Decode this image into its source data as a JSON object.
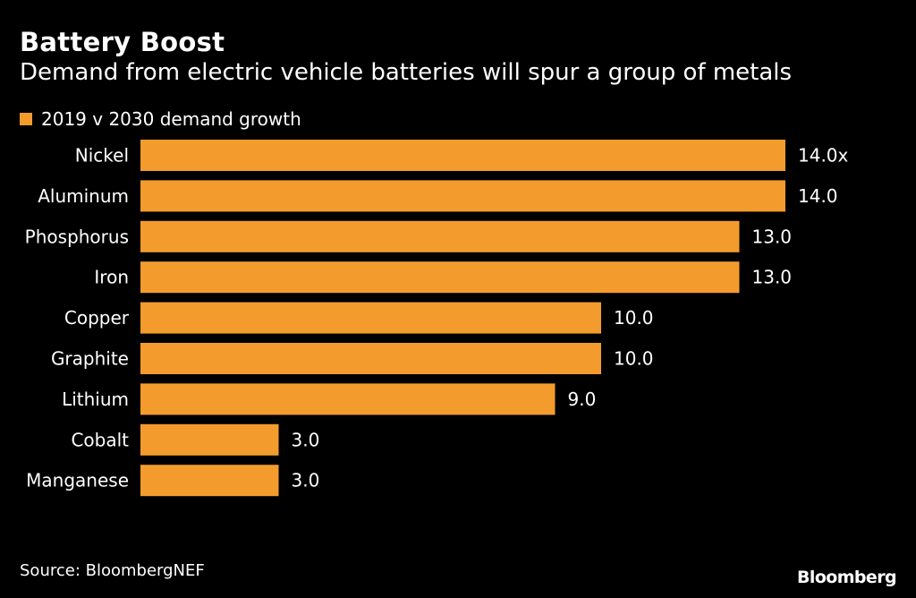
{
  "colors": {
    "background": "#000000",
    "bar": "#f39c2d",
    "text": "#ffffff"
  },
  "header": {
    "title": "Battery Boost",
    "subtitle": "Demand from electric vehicle batteries will spur a group of metals"
  },
  "footer": {
    "source": "Source: BloombergNEF",
    "brand": "Bloomberg"
  },
  "chart_data": {
    "type": "bar",
    "orientation": "horizontal",
    "categories": [
      "Nickel",
      "Aluminum",
      "Phosphorus",
      "Iron",
      "Copper",
      "Graphite",
      "Lithium",
      "Cobalt",
      "Manganese"
    ],
    "series": [
      {
        "name": "2019 v 2030 demand growth",
        "values": [
          14.0,
          14.0,
          13.0,
          13.0,
          10.0,
          10.0,
          9.0,
          3.0,
          3.0
        ]
      }
    ],
    "data_labels": [
      "14.0x",
      "14.0",
      "13.0",
      "13.0",
      "10.0",
      "10.0",
      "9.0",
      "3.0",
      "3.0"
    ],
    "xlim": [
      0,
      14
    ],
    "grid": false,
    "legend_position": "top-left"
  }
}
